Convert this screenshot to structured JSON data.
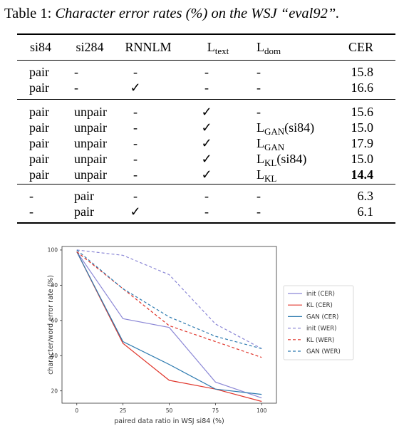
{
  "caption": {
    "label": "Table 1:",
    "text": "Character error rates (%) on the WSJ “eval92”."
  },
  "table": {
    "headers": {
      "si84": "si84",
      "si284": "si284",
      "rnnlm": "RNNLM",
      "ltext_main": "L",
      "ltext_sub": "text",
      "ldom_main": "L",
      "ldom_sub": "dom",
      "cer": "CER"
    },
    "groups": [
      [
        {
          "si84": "pair",
          "si284": "-",
          "rnnlm": "-",
          "ltext": "-",
          "ldom_main": "-",
          "ldom_sub": "",
          "ldom_suffix": "",
          "cer": "15.8",
          "bold": false
        },
        {
          "si84": "pair",
          "si284": "-",
          "rnnlm": "✓",
          "ltext": "-",
          "ldom_main": "-",
          "ldom_sub": "",
          "ldom_suffix": "",
          "cer": "16.6",
          "bold": false
        }
      ],
      [
        {
          "si84": "pair",
          "si284": "unpair",
          "rnnlm": "-",
          "ltext": "✓",
          "ldom_main": "-",
          "ldom_sub": "",
          "ldom_suffix": "",
          "cer": "15.6",
          "bold": false
        },
        {
          "si84": "pair",
          "si284": "unpair",
          "rnnlm": "-",
          "ltext": "✓",
          "ldom_main": "L",
          "ldom_sub": "GAN",
          "ldom_suffix": "(si84)",
          "cer": "15.0",
          "bold": false
        },
        {
          "si84": "pair",
          "si284": "unpair",
          "rnnlm": "-",
          "ltext": "✓",
          "ldom_main": "L",
          "ldom_sub": "GAN",
          "ldom_suffix": "",
          "cer": "17.9",
          "bold": false
        },
        {
          "si84": "pair",
          "si284": "unpair",
          "rnnlm": "-",
          "ltext": "✓",
          "ldom_main": "L",
          "ldom_sub": "KL",
          "ldom_suffix": "(si84)",
          "cer": "15.0",
          "bold": false
        },
        {
          "si84": "pair",
          "si284": "unpair",
          "rnnlm": "-",
          "ltext": "✓",
          "ldom_main": "L",
          "ldom_sub": "KL",
          "ldom_suffix": "",
          "cer": "14.4",
          "bold": true
        }
      ],
      [
        {
          "si84": "-",
          "si284": "pair",
          "rnnlm": "-",
          "ltext": "-",
          "ldom_main": "-",
          "ldom_sub": "",
          "ldom_suffix": "",
          "cer": "6.3",
          "bold": false
        },
        {
          "si84": "-",
          "si284": "pair",
          "rnnlm": "✓",
          "ltext": "-",
          "ldom_main": "-",
          "ldom_sub": "",
          "ldom_suffix": "",
          "cer": "6.1",
          "bold": false
        }
      ]
    ]
  },
  "chart_data": {
    "type": "line",
    "xlabel": "paired data ratio in WSJ si84 (%)",
    "ylabel": "character/word error rate (%)",
    "x": [
      0,
      25,
      50,
      75,
      100
    ],
    "xticks": [
      "0",
      "25",
      "50",
      "75",
      "100"
    ],
    "yticks": [
      "20",
      "40",
      "60",
      "80",
      "100"
    ],
    "xlim": [
      -8,
      108
    ],
    "ylim": [
      13,
      102
    ],
    "grid": false,
    "legend_position": "right",
    "series": [
      {
        "name": "init (CER)",
        "values": [
          99,
          61,
          56,
          25,
          16
        ],
        "color": "#8c88d6",
        "dashed": false
      },
      {
        "name": "KL (CER)",
        "values": [
          99,
          47,
          26,
          21,
          14
        ],
        "color": "#e0352b",
        "dashed": false
      },
      {
        "name": "GAN (CER)",
        "values": [
          99,
          48,
          35,
          21,
          18
        ],
        "color": "#2e7bb0",
        "dashed": false
      },
      {
        "name": "init (WER)",
        "values": [
          100,
          97,
          86,
          58,
          44
        ],
        "color": "#8c88d6",
        "dashed": true
      },
      {
        "name": "KL (WER)",
        "values": [
          99,
          78,
          57,
          48,
          39
        ],
        "color": "#e0352b",
        "dashed": true
      },
      {
        "name": "GAN (WER)",
        "values": [
          100,
          78,
          62,
          51,
          44
        ],
        "color": "#2e7bb0",
        "dashed": true
      }
    ]
  }
}
